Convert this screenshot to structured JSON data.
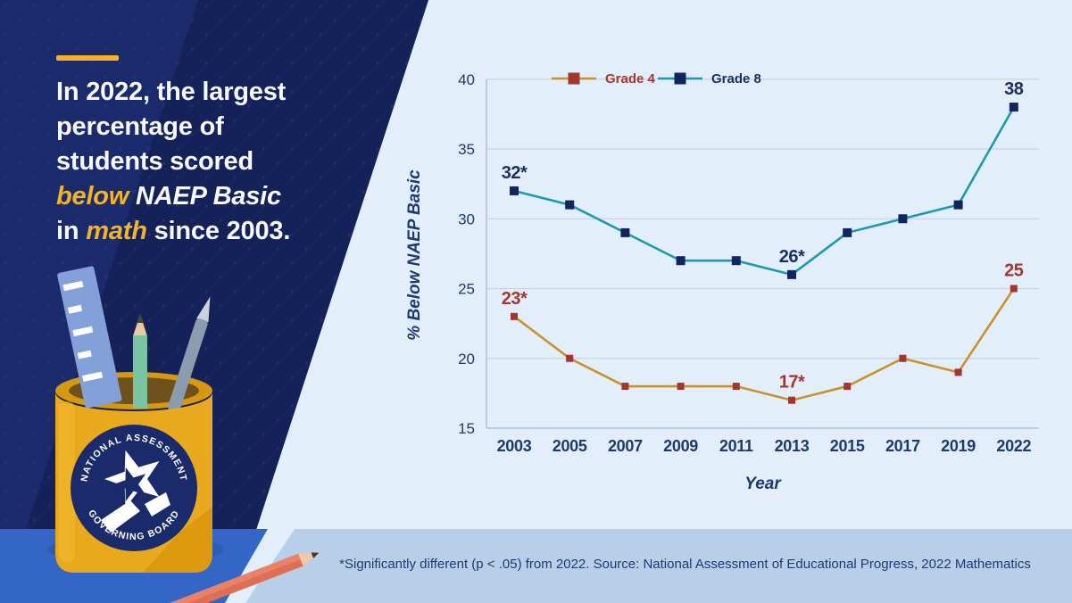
{
  "colors": {
    "panel_navy": "#1B2A6B",
    "panel_navy_dark": "#152159",
    "accent_gold": "#F2B32B",
    "desk_blue": "#3366C6",
    "footnote_band": "#B8CEE9",
    "chart_background": "#E2EEF9",
    "axis_text_navy": "#1E3A6D"
  },
  "left_panel": {
    "headline_lines": [
      [
        {
          "text": "In 2022, the largest",
          "style": "normal"
        }
      ],
      [
        {
          "text": "percentage of",
          "style": "normal"
        }
      ],
      [
        {
          "text": "students scored",
          "style": "normal"
        }
      ],
      [
        {
          "text": "below",
          "style": "gold"
        },
        {
          "text": " NAEP Basic",
          "style": "italic"
        }
      ],
      [
        {
          "text": "in ",
          "style": "normal"
        },
        {
          "text": "math",
          "style": "gold"
        },
        {
          "text": " since 2003.",
          "style": "normal"
        }
      ]
    ],
    "badge": {
      "top_text": "NATIONAL ASSESSMENT",
      "bottom_text": "GOVERNING BOARD"
    }
  },
  "footnote": {
    "text": "*Significantly different (p < .05) from 2022.  Source: National Assessment of Educational Progress, 2022 Mathematics"
  },
  "chart_data": {
    "type": "line",
    "title": "",
    "xlabel": "Year",
    "ylabel": "% Below NAEP Basic",
    "categories": [
      "2003",
      "2005",
      "2007",
      "2009",
      "2011",
      "2013",
      "2015",
      "2017",
      "2019",
      "2022"
    ],
    "ylim": [
      15,
      40
    ],
    "yticks": [
      15,
      20,
      25,
      30,
      35,
      40
    ],
    "grid": true,
    "legend_position": "top",
    "series": [
      {
        "name": "Grade 4",
        "values": [
          23,
          20,
          18,
          18,
          18,
          17,
          18,
          20,
          19,
          25
        ],
        "line_color": "#C9912F",
        "marker_color": "#A3362E",
        "label_color": "#A3362E",
        "marker_size": 8,
        "point_labels": [
          {
            "x": "2003",
            "text": "23*"
          },
          {
            "x": "2013",
            "text": "17*"
          },
          {
            "x": "2022",
            "text": "25"
          }
        ]
      },
      {
        "name": "Grade 8",
        "values": [
          32,
          31,
          29,
          27,
          27,
          26,
          29,
          30,
          31,
          38
        ],
        "line_color": "#1C9AAD",
        "marker_color": "#14245E",
        "label_color": "#1B2F5E",
        "marker_size": 10,
        "point_labels": [
          {
            "x": "2003",
            "text": "32*"
          },
          {
            "x": "2013",
            "text": "26*"
          },
          {
            "x": "2022",
            "text": "38"
          }
        ]
      }
    ]
  }
}
